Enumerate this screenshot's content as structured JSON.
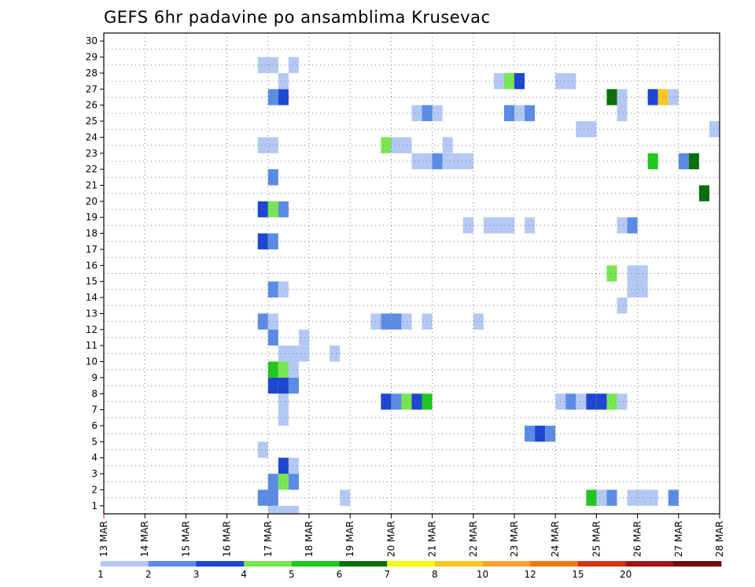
{
  "chart_data": {
    "type": "heatmap",
    "title": "GEFS 6hr padavine po ansamblima Krusevac",
    "xlabel": "",
    "ylabel": "",
    "x_tick_labels": [
      "13 MAR",
      "14 MAR",
      "15 MAR",
      "16 MAR",
      "17 MAR",
      "18 MAR",
      "19 MAR",
      "20 MAR",
      "21 MAR",
      "22 MAR",
      "23 MAR",
      "24 MAR",
      "25 MAR",
      "26 MAR",
      "27 MAR",
      "28 MAR"
    ],
    "y_tick_labels": [
      "1",
      "2",
      "3",
      "4",
      "5",
      "6",
      "7",
      "8",
      "9",
      "10",
      "11",
      "12",
      "13",
      "14",
      "15",
      "16",
      "17",
      "18",
      "19",
      "20",
      "21",
      "22",
      "23",
      "24",
      "25",
      "26",
      "27",
      "28",
      "29",
      "30"
    ],
    "xlim": [
      0,
      60
    ],
    "ylim": [
      0,
      30
    ],
    "grid": true,
    "colorbar": {
      "placement": "bottom",
      "labels": [
        "1",
        "2",
        "3",
        "4",
        "5",
        "6",
        "7",
        "8",
        "10",
        "12",
        "15",
        "20"
      ],
      "colors": [
        "#b4c8f5",
        "#5a8ce6",
        "#1e46d2",
        "#78e650",
        "#1ec81e",
        "#0a6e0a",
        "#fafa00",
        "#fac81e",
        "#faa032",
        "#f07814",
        "#d23214",
        "#a01414",
        "#6e0a0a"
      ]
    },
    "cells": [
      [
        17,
        1,
        1
      ],
      [
        18,
        1,
        1
      ],
      [
        19,
        1,
        1
      ],
      [
        16,
        2,
        2
      ],
      [
        17,
        2,
        2
      ],
      [
        24,
        2,
        1
      ],
      [
        48,
        2,
        5
      ],
      [
        49,
        2,
        1
      ],
      [
        50,
        2,
        2
      ],
      [
        52,
        2,
        1
      ],
      [
        53,
        2,
        1
      ],
      [
        54,
        2,
        1
      ],
      [
        56,
        2,
        2
      ],
      [
        17,
        3,
        2
      ],
      [
        18,
        3,
        4
      ],
      [
        19,
        3,
        2
      ],
      [
        18,
        4,
        3
      ],
      [
        19,
        4,
        1
      ],
      [
        16,
        5,
        1
      ],
      [
        42,
        6,
        2
      ],
      [
        43,
        6,
        3
      ],
      [
        44,
        6,
        2
      ],
      [
        18,
        7,
        1
      ],
      [
        18,
        8,
        1
      ],
      [
        28,
        8,
        3
      ],
      [
        29,
        8,
        2
      ],
      [
        30,
        8,
        4
      ],
      [
        31,
        8,
        3
      ],
      [
        32,
        8,
        5
      ],
      [
        45,
        8,
        1
      ],
      [
        46,
        8,
        2
      ],
      [
        47,
        8,
        1
      ],
      [
        48,
        8,
        3
      ],
      [
        49,
        8,
        3
      ],
      [
        50,
        8,
        4
      ],
      [
        51,
        8,
        1
      ],
      [
        17,
        9,
        3
      ],
      [
        18,
        9,
        3
      ],
      [
        19,
        9,
        2
      ],
      [
        17,
        10,
        5
      ],
      [
        18,
        10,
        4
      ],
      [
        19,
        10,
        1
      ],
      [
        18,
        11,
        1
      ],
      [
        19,
        11,
        1
      ],
      [
        20,
        11,
        1
      ],
      [
        23,
        11,
        1
      ],
      [
        20,
        12,
        1
      ],
      [
        17,
        12,
        2
      ],
      [
        16,
        13,
        2
      ],
      [
        17,
        13,
        1
      ],
      [
        27,
        13,
        1
      ],
      [
        28,
        13,
        2
      ],
      [
        29,
        13,
        2
      ],
      [
        30,
        13,
        1
      ],
      [
        32,
        13,
        1
      ],
      [
        37,
        13,
        1
      ],
      [
        51,
        14,
        1
      ],
      [
        17,
        15,
        2
      ],
      [
        18,
        15,
        1
      ],
      [
        52,
        15,
        1
      ],
      [
        53,
        15,
        1
      ],
      [
        50,
        16,
        4
      ],
      [
        52,
        16,
        1
      ],
      [
        53,
        16,
        1
      ],
      [
        16,
        18,
        3
      ],
      [
        17,
        18,
        2
      ],
      [
        36,
        19,
        1
      ],
      [
        38,
        19,
        1
      ],
      [
        39,
        19,
        1
      ],
      [
        40,
        19,
        1
      ],
      [
        42,
        19,
        1
      ],
      [
        51,
        19,
        1
      ],
      [
        52,
        19,
        2
      ],
      [
        16,
        20,
        3
      ],
      [
        17,
        20,
        4
      ],
      [
        18,
        20,
        2
      ],
      [
        59,
        21,
        6
      ],
      [
        17,
        22,
        2
      ],
      [
        31,
        23,
        1
      ],
      [
        32,
        23,
        1
      ],
      [
        33,
        23,
        2
      ],
      [
        34,
        23,
        1
      ],
      [
        35,
        23,
        1
      ],
      [
        36,
        23,
        1
      ],
      [
        54,
        23,
        5
      ],
      [
        57,
        23,
        2
      ],
      [
        58,
        23,
        6
      ],
      [
        16,
        24,
        1
      ],
      [
        17,
        24,
        1
      ],
      [
        28,
        24,
        4
      ],
      [
        29,
        24,
        1
      ],
      [
        30,
        24,
        1
      ],
      [
        34,
        24,
        1
      ],
      [
        47,
        25,
        1
      ],
      [
        48,
        25,
        1
      ],
      [
        60,
        25,
        1
      ],
      [
        31,
        26,
        1
      ],
      [
        32,
        26,
        2
      ],
      [
        33,
        26,
        1
      ],
      [
        40,
        26,
        2
      ],
      [
        41,
        26,
        1
      ],
      [
        42,
        26,
        2
      ],
      [
        51,
        26,
        1
      ],
      [
        17,
        27,
        2
      ],
      [
        18,
        27,
        3
      ],
      [
        50,
        27,
        6
      ],
      [
        51,
        27,
        1
      ],
      [
        54,
        27,
        3
      ],
      [
        55,
        27,
        8
      ],
      [
        56,
        27,
        1
      ],
      [
        18,
        28,
        1
      ],
      [
        39,
        28,
        1
      ],
      [
        40,
        28,
        4
      ],
      [
        41,
        28,
        3
      ],
      [
        45,
        28,
        1
      ],
      [
        46,
        28,
        1
      ],
      [
        16,
        29,
        1
      ],
      [
        17,
        29,
        1
      ],
      [
        19,
        29,
        1
      ]
    ]
  }
}
